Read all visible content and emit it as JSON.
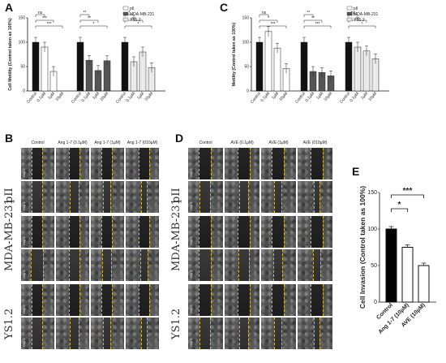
{
  "panels": {
    "A": {
      "letter": "A"
    },
    "B": {
      "letter": "B"
    },
    "C": {
      "letter": "C"
    },
    "D": {
      "letter": "D"
    },
    "E": {
      "letter": "E"
    }
  },
  "chart_data": [
    {
      "id": "A",
      "type": "bar",
      "ylabel": "Cell Motility (Control taken as 100%)",
      "ylim": [
        0,
        150
      ],
      "yticks": [
        0,
        50,
        100,
        150
      ],
      "groups": [
        "pII",
        "MDA-MB-231",
        "YS1.2"
      ],
      "categories": [
        "Control",
        "0.1µM",
        "1µM",
        "10µM"
      ],
      "series": [
        {
          "name": "pII",
          "values": [
            100,
            90,
            40,
            0
          ]
        },
        {
          "name": "MDA-MB-231",
          "values": [
            100,
            63,
            42,
            62
          ]
        },
        {
          "name": "YS1.2",
          "values": [
            100,
            60,
            80,
            48
          ]
        }
      ],
      "legend": [
        "pII",
        "MDA-MB-231",
        "YS1.2"
      ],
      "legend_position": "top-right",
      "significance": [
        {
          "group": 0,
          "from": 0,
          "to": 1,
          "label": "ns"
        },
        {
          "group": 0,
          "from": 0,
          "to": 2,
          "label": "***"
        },
        {
          "group": 0,
          "from": 0,
          "to": 3,
          "label": "***"
        },
        {
          "group": 1,
          "from": 0,
          "to": 1,
          "label": "**"
        },
        {
          "group": 1,
          "from": 0,
          "to": 2,
          "label": "**"
        },
        {
          "group": 1,
          "from": 0,
          "to": 3,
          "label": "*"
        },
        {
          "group": 2,
          "from": 0,
          "to": 1,
          "label": "*"
        },
        {
          "group": 2,
          "from": 0,
          "to": 2,
          "label": "ns"
        },
        {
          "group": 2,
          "from": 0,
          "to": 3,
          "label": "*"
        }
      ]
    },
    {
      "id": "C",
      "type": "bar",
      "ylabel": "Motility (Control taken as 100%)",
      "ylim": [
        0,
        150
      ],
      "yticks": [
        0,
        50,
        100,
        150
      ],
      "groups": [
        "pII",
        "MDA-MB-231",
        "YS1.2"
      ],
      "categories": [
        "Control",
        "0.1µM",
        "1µM",
        "10µM"
      ],
      "series": [
        {
          "name": "pII",
          "values": [
            100,
            122,
            88,
            46
          ]
        },
        {
          "name": "MDA-MB-231",
          "values": [
            100,
            40,
            38,
            31
          ]
        },
        {
          "name": "YS1.2",
          "values": [
            100,
            90,
            82,
            66
          ]
        }
      ],
      "legend": [
        "pII",
        "MDA-MB-231",
        "YS1.2"
      ],
      "legend_position": "top-right",
      "significance": [
        {
          "group": 0,
          "from": 0,
          "to": 1,
          "label": "ns"
        },
        {
          "group": 0,
          "from": 0,
          "to": 2,
          "label": "*"
        },
        {
          "group": 0,
          "from": 0,
          "to": 3,
          "label": "***"
        },
        {
          "group": 1,
          "from": 0,
          "to": 1,
          "label": "**"
        },
        {
          "group": 1,
          "from": 0,
          "to": 2,
          "label": "**"
        },
        {
          "group": 1,
          "from": 0,
          "to": 3,
          "label": "***"
        },
        {
          "group": 2,
          "from": 0,
          "to": 1,
          "label": "ns"
        },
        {
          "group": 2,
          "from": 0,
          "to": 2,
          "label": "ns"
        },
        {
          "group": 2,
          "from": 0,
          "to": 3,
          "label": "*"
        }
      ]
    },
    {
      "id": "E",
      "type": "bar",
      "ylabel": "Cell Invasion (Control taken as 100%)",
      "ylim": [
        0,
        150
      ],
      "yticks": [
        0,
        50,
        100,
        150
      ],
      "categories": [
        "Control",
        "Ang 1-7 (10µM)",
        "AVE (10µM)"
      ],
      "values": [
        100,
        75,
        50
      ],
      "significance": [
        {
          "from": 0,
          "to": 1,
          "label": "*"
        },
        {
          "from": 0,
          "to": 2,
          "label": "***"
        }
      ]
    }
  ],
  "micrographs": {
    "B": {
      "columns": [
        "Control",
        "Ang 1-7 (0.1µM)",
        "Ang 1-7 (1µM)",
        "Ang 1-7 (010µM)"
      ],
      "rows": [
        {
          "cell": "pII",
          "day": "Day 0"
        },
        {
          "cell": "pII",
          "day": "Day 1"
        },
        {
          "cell": "MDA-MB-231",
          "day": "Day 0"
        },
        {
          "cell": "MDA-MB-231",
          "day": "Day 1"
        },
        {
          "cell": "YS1.2",
          "day": "Day 0"
        },
        {
          "cell": "YS1.2",
          "day": "Day 1"
        }
      ],
      "cell_lines": [
        "pII",
        "MDA-MB-231",
        "YS1.2"
      ]
    },
    "D": {
      "columns": [
        "Control",
        "AVE (0.1µM)",
        "AVE (1µM)",
        "AVE (010µM)"
      ],
      "rows": [
        {
          "cell": "pII",
          "day": "Day 0"
        },
        {
          "cell": "pII",
          "day": "Day 1"
        },
        {
          "cell": "MDA-MB-231",
          "day": "Day 0"
        },
        {
          "cell": "MDA-MB-231",
          "day": "Day 1"
        },
        {
          "cell": "YS1.2",
          "day": "Day 0"
        },
        {
          "cell": "YS1.2",
          "day": "Day 1"
        }
      ],
      "cell_lines": [
        "pII",
        "MDA-MB-231",
        "YS1.2"
      ]
    }
  },
  "colors": {
    "pII": "#ffffff",
    "MDA-MB-231": "#555555",
    "YS1.2": "#eeeeee",
    "control": "#111111",
    "scratch_edge": "#d9b94a"
  }
}
